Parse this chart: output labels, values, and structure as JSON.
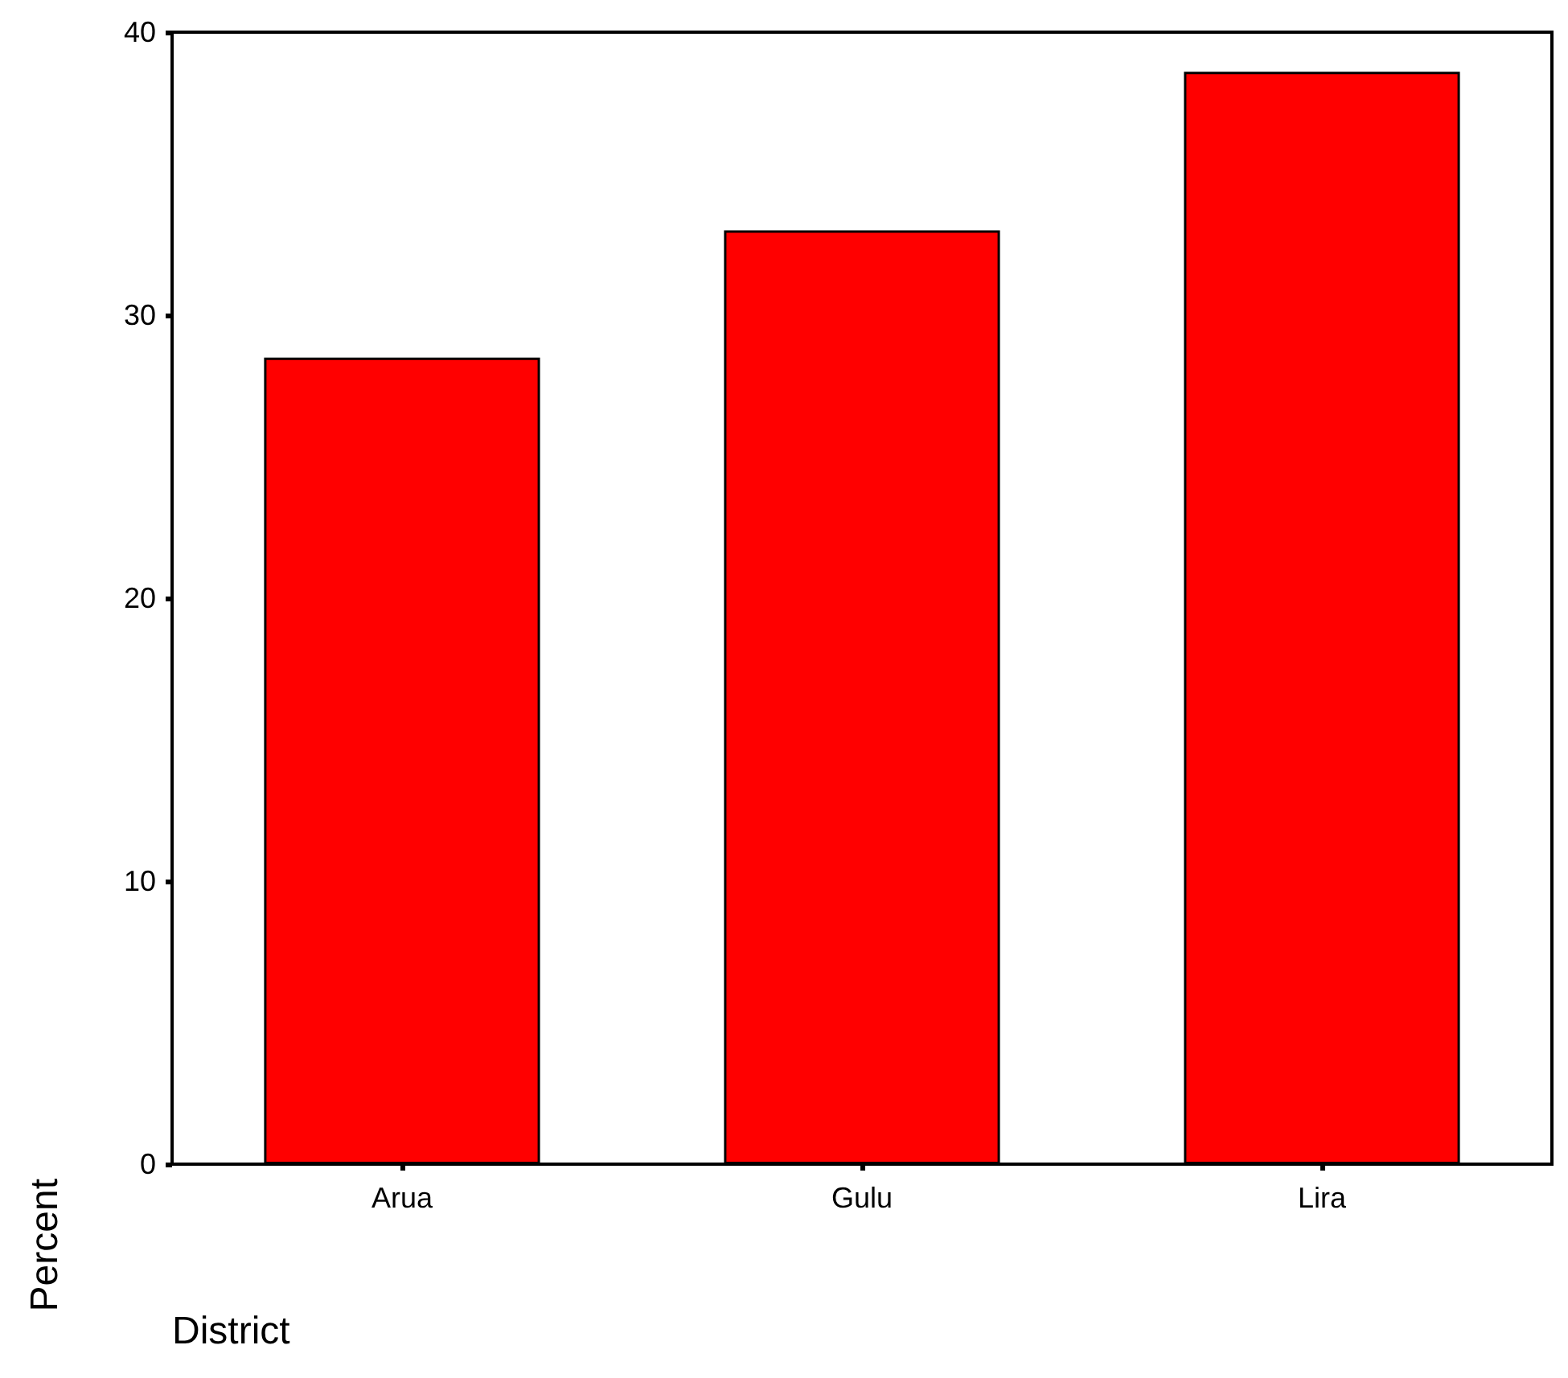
{
  "chart_data": {
    "type": "bar",
    "categories": [
      "Arua",
      "Gulu",
      "Lira"
    ],
    "values": [
      28.5,
      33.0,
      38.6
    ],
    "color": "#ff0000",
    "xlabel": "District",
    "ylabel": "Percent",
    "ylim": [
      0,
      40
    ],
    "yticks": [
      0,
      10,
      20,
      30,
      40
    ]
  }
}
